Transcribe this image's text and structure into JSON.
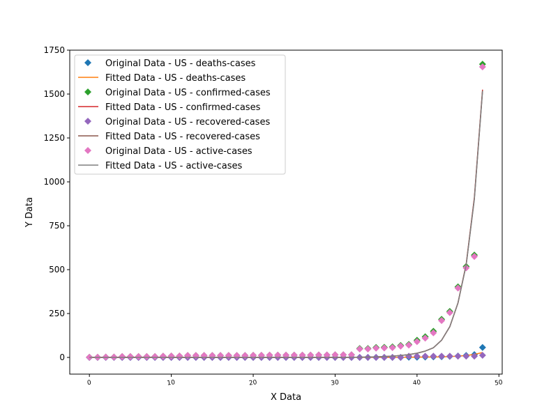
{
  "chart_data": {
    "type": "scatter",
    "xlabel": "X Data",
    "ylabel": "Y Data",
    "xlim": [
      -2.4,
      50.4
    ],
    "ylim": [
      -95,
      1750
    ],
    "xticks": [
      0,
      10,
      20,
      30,
      40,
      50
    ],
    "yticks": [
      0,
      250,
      500,
      750,
      1000,
      1250,
      1500,
      1750
    ],
    "x_tick_labels": [
      "0",
      "10",
      "20",
      "30",
      "40",
      "50"
    ],
    "y_tick_labels": [
      "0",
      "250",
      "500",
      "750",
      "1000",
      "1250",
      "1500",
      "1750"
    ],
    "legend_position": "top-left",
    "x": [
      0,
      1,
      2,
      3,
      4,
      5,
      6,
      7,
      8,
      9,
      10,
      11,
      12,
      13,
      14,
      15,
      16,
      17,
      18,
      19,
      20,
      21,
      22,
      23,
      24,
      25,
      26,
      27,
      28,
      29,
      30,
      31,
      32,
      33,
      34,
      35,
      36,
      37,
      38,
      39,
      40,
      41,
      42,
      43,
      44,
      45,
      46,
      47,
      48
    ],
    "series": [
      {
        "name": "Original Data - US - deaths-cases",
        "kind": "marker",
        "color": "#1f77b4",
        "values": [
          0,
          0,
          0,
          0,
          0,
          0,
          0,
          0,
          0,
          0,
          0,
          0,
          0,
          0,
          0,
          0,
          0,
          0,
          0,
          0,
          0,
          0,
          0,
          0,
          0,
          0,
          0,
          0,
          0,
          0,
          0,
          0,
          0,
          0,
          0,
          0,
          0,
          0,
          0,
          1,
          1,
          2,
          3,
          4,
          6,
          8,
          11,
          16,
          57
        ]
      },
      {
        "name": "Fitted Data - US - deaths-cases",
        "kind": "line",
        "color": "#ff7f0e",
        "values": [
          0,
          0,
          0,
          0,
          0,
          0,
          0,
          0,
          0,
          0,
          0,
          0,
          0,
          0,
          0,
          0,
          0,
          0,
          0,
          0,
          0,
          0,
          0,
          0,
          0,
          0,
          0,
          0,
          0,
          0,
          0,
          0,
          0,
          0,
          0,
          0,
          0,
          0,
          0,
          1,
          1,
          2,
          2,
          3,
          5,
          7,
          11,
          17,
          28
        ]
      },
      {
        "name": "Original Data - US - confirmed-cases",
        "kind": "marker",
        "color": "#2ca02c",
        "values": [
          1,
          1,
          2,
          2,
          5,
          5,
          5,
          5,
          5,
          7,
          8,
          8,
          11,
          11,
          11,
          11,
          11,
          11,
          11,
          11,
          12,
          12,
          13,
          13,
          13,
          13,
          13,
          13,
          14,
          14,
          15,
          15,
          15,
          51,
          51,
          57,
          58,
          60,
          68,
          74,
          98,
          118,
          149,
          217,
          262,
          402,
          518,
          583,
          1670
        ]
      },
      {
        "name": "Fitted Data - US - confirmed-cases",
        "kind": "line",
        "color": "#d62728",
        "values": [
          0,
          0,
          0,
          0,
          0,
          0,
          0,
          0,
          0,
          0,
          0,
          0,
          0,
          0,
          0,
          0,
          0,
          0,
          0,
          0,
          0,
          0,
          0,
          0,
          0,
          0,
          0,
          0,
          0,
          0,
          0,
          0,
          1,
          1,
          2,
          3,
          5,
          7,
          11,
          16,
          24,
          36,
          55,
          98,
          175,
          310,
          530,
          910,
          1525
        ]
      },
      {
        "name": "Original Data - US - recovered-cases",
        "kind": "marker",
        "color": "#9467bd",
        "values": [
          0,
          0,
          0,
          0,
          0,
          0,
          0,
          0,
          0,
          0,
          0,
          0,
          0,
          0,
          0,
          0,
          0,
          0,
          0,
          0,
          0,
          0,
          0,
          0,
          0,
          0,
          0,
          0,
          0,
          0,
          0,
          0,
          0,
          0,
          0,
          0,
          0,
          0,
          0,
          7,
          7,
          7,
          7,
          7,
          7,
          7,
          7,
          7,
          12
        ]
      },
      {
        "name": "Fitted Data - US - recovered-cases",
        "kind": "line",
        "color": "#8c564b",
        "values": [
          0,
          0,
          0,
          0,
          0,
          0,
          0,
          0,
          0,
          0,
          0,
          0,
          0,
          0,
          0,
          0,
          0,
          0,
          0,
          0,
          0,
          0,
          0,
          0,
          0,
          0,
          0,
          0,
          0,
          0,
          0,
          0,
          1,
          1,
          2,
          3,
          5,
          7,
          11,
          16,
          24,
          36,
          55,
          98,
          175,
          310,
          528,
          905,
          1520
        ]
      },
      {
        "name": "Original Data - US - active-cases",
        "kind": "marker",
        "color": "#e377c2",
        "values": [
          1,
          1,
          2,
          2,
          5,
          5,
          5,
          5,
          5,
          7,
          8,
          8,
          11,
          11,
          11,
          11,
          11,
          11,
          11,
          11,
          12,
          12,
          13,
          13,
          13,
          13,
          13,
          13,
          14,
          14,
          15,
          15,
          15,
          48,
          48,
          53,
          54,
          56,
          64,
          70,
          90,
          110,
          140,
          210,
          255,
          395,
          510,
          575,
          1655
        ]
      },
      {
        "name": "Fitted Data - US - active-cases",
        "kind": "line",
        "color": "#7f7f7f",
        "values": [
          0,
          0,
          0,
          0,
          0,
          0,
          0,
          0,
          0,
          0,
          0,
          0,
          0,
          0,
          0,
          0,
          0,
          0,
          0,
          0,
          0,
          0,
          0,
          0,
          0,
          0,
          0,
          0,
          0,
          0,
          0,
          0,
          1,
          1,
          2,
          3,
          5,
          7,
          11,
          16,
          24,
          36,
          55,
          98,
          175,
          310,
          525,
          900,
          1515
        ]
      }
    ]
  }
}
